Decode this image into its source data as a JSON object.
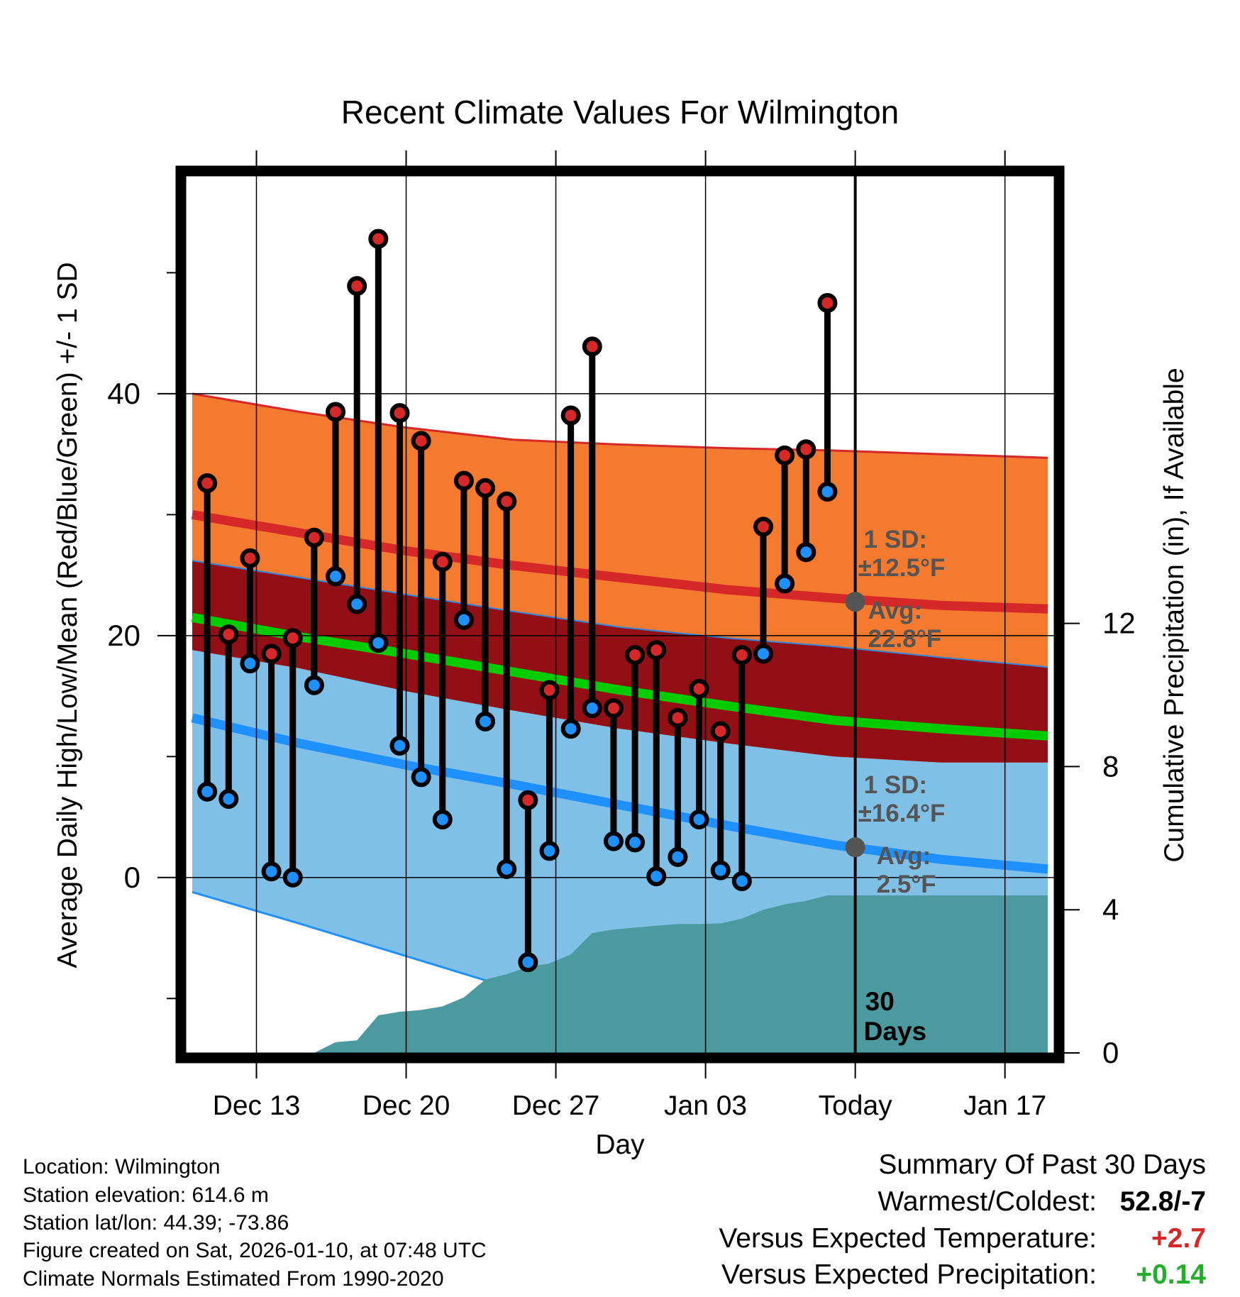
{
  "chart_data": {
    "type": "line",
    "title": "Recent Climate Values For Wilmington",
    "xlabel": "Day",
    "ylabel_left": "Average Daily High/Low/Mean (Red/Blue/Green) +/- 1 SD",
    "ylabel_right": "Cumulative Precipitation (in), If Available",
    "left_axis": {
      "ylim": [
        -14.5,
        58
      ],
      "ticks": [
        0,
        20,
        40
      ],
      "minor_ticks": [
        -10,
        10,
        30,
        50
      ]
    },
    "right_axis": {
      "ylim": [
        0,
        24.5
      ],
      "ticks": [
        0,
        4,
        8,
        12
      ]
    },
    "x_axis": {
      "xlim": [
        9.7,
        50.3
      ],
      "ticks": [
        {
          "x": 13,
          "label": "Dec 13"
        },
        {
          "x": 20,
          "label": "Dec 20"
        },
        {
          "x": 27,
          "label": "Dec 27"
        },
        {
          "x": 34,
          "label": "Jan 03"
        },
        {
          "x": 41,
          "label": "Today"
        },
        {
          "x": 48,
          "label": "Jan 17"
        }
      ]
    },
    "today_x": 41,
    "today_label": "30\nDays",
    "normals": {
      "x": [
        10,
        15,
        20,
        25,
        30,
        35,
        40,
        45,
        50
      ],
      "high_mean": [
        30,
        28.5,
        27,
        25.8,
        24.8,
        23.8,
        23.1,
        22.5,
        22.2
      ],
      "high_upper": [
        40,
        38.5,
        37.2,
        36.2,
        35.8,
        35.5,
        35.3,
        35,
        34.7
      ],
      "high_lower": [
        26.2,
        24.8,
        23.4,
        22,
        20.7,
        19.8,
        19.1,
        18.2,
        17.4
      ],
      "mean": [
        21.5,
        19.9,
        18.5,
        17,
        15.5,
        14.2,
        13,
        12.3,
        11.7
      ],
      "low_upper": [
        18.8,
        17.3,
        15.4,
        13.8,
        12.3,
        11.1,
        10,
        9.5,
        9.5
      ],
      "low_mean": [
        13.2,
        11.1,
        9.3,
        7.7,
        6,
        4.3,
        2.7,
        1.5,
        0.7
      ],
      "low_lower_x": [
        10,
        15,
        20,
        25,
        27
      ],
      "low_lower": [
        -1.2,
        -3.8,
        -6.5,
        -9.2,
        -8.7
      ]
    },
    "daily_temperatures": {
      "x": [
        10.7,
        11.7,
        12.7,
        13.7,
        14.7,
        15.7,
        16.7,
        17.7,
        18.7,
        19.7,
        20.7,
        21.7,
        22.7,
        23.7,
        24.7,
        25.7,
        26.7,
        27.7,
        28.7,
        29.7,
        30.7,
        31.7,
        32.7,
        33.7,
        34.7,
        35.7,
        36.7,
        37.7,
        38.7
      ],
      "high": [
        32.6,
        20.1,
        26.4,
        18.5,
        19.8,
        28.1,
        38.5,
        48.9,
        52.8,
        38.4,
        36.1,
        26.1,
        32.8,
        32.2,
        31.1,
        6.4,
        15.5,
        38.2,
        43.9,
        14,
        18.4,
        18.8,
        13.2,
        15.6,
        12.1,
        18.4,
        29,
        34.9,
        35.4
      ],
      "low": [
        7.1,
        6.5,
        17.7,
        0.5,
        0,
        15.9,
        24.9,
        22.6,
        19.4,
        10.9,
        8.3,
        4.8,
        21.3,
        12.9,
        0.7,
        -7,
        2.2,
        12.3,
        14,
        3,
        2.9,
        0.1,
        1.7,
        4.8,
        0.6,
        -0.3,
        18.5,
        24.3,
        26.9
      ]
    },
    "last_day": {
      "x": 39.7,
      "high": 47.5,
      "low": 31.9
    },
    "precipitation": {
      "x": [
        10,
        15.7,
        16.7,
        17.7,
        18.7,
        19.7,
        20.7,
        21.7,
        22.7,
        23.7,
        24.7,
        25.7,
        26.7,
        27.7,
        28.7,
        29.7,
        30.7,
        31.7,
        32.7,
        33.7,
        34.7,
        35.7,
        36.7,
        37.7,
        38.7,
        39.7,
        41,
        50
      ],
      "cumulative": [
        0,
        0,
        0.3,
        0.35,
        1.05,
        1.15,
        1.2,
        1.3,
        1.55,
        2.05,
        2.2,
        2.4,
        2.5,
        2.75,
        3.35,
        3.45,
        3.5,
        3.55,
        3.6,
        3.6,
        3.62,
        3.75,
        4.0,
        4.15,
        4.25,
        4.4,
        4.4,
        4.4
      ]
    },
    "annotations": {
      "high_sd": {
        "line1": "1 SD:",
        "line2": "±12.5°F",
        "avg_label": "Avg:",
        "avg_value": "22.8°F",
        "value": 22.8
      },
      "low_sd": {
        "line1": "1 SD:",
        "line2": "±16.4°F",
        "avg_label": "Avg:",
        "avg_value": "2.5°F",
        "value": 2.5
      }
    },
    "colors": {
      "high_band": "#f47a30",
      "high_mean_line": "#d62828",
      "mean_band": "#920f16",
      "mean_line": "#00cc00",
      "low_band": "#80c0e6",
      "low_mean_line": "#1e90ff",
      "precip": "#4a9aa0",
      "high_marker": "#d62828",
      "low_marker": "#1e90ff",
      "annotation": "#555555"
    }
  },
  "footer": {
    "location": "Location: Wilmington",
    "elevation": "Station elevation: 614.6 m",
    "latlon": "Station lat/lon: 44.39; -73.86",
    "created": "Figure created on Sat, 2026-01-10, at 07:48 UTC",
    "normals": "Climate Normals Estimated From 1990-2020"
  },
  "summary": {
    "title": "Summary Of Past 30 Days",
    "warmest_coldest_label": "Warmest/Coldest:",
    "warmest_coldest_value": "52.8/-7",
    "temp_label": "Versus Expected Temperature:",
    "temp_value": "+2.7",
    "precip_label": "Versus Expected Precipitation:",
    "precip_value": "+0.14",
    "temp_color": "#d62828",
    "precip_color": "#22b02a"
  }
}
